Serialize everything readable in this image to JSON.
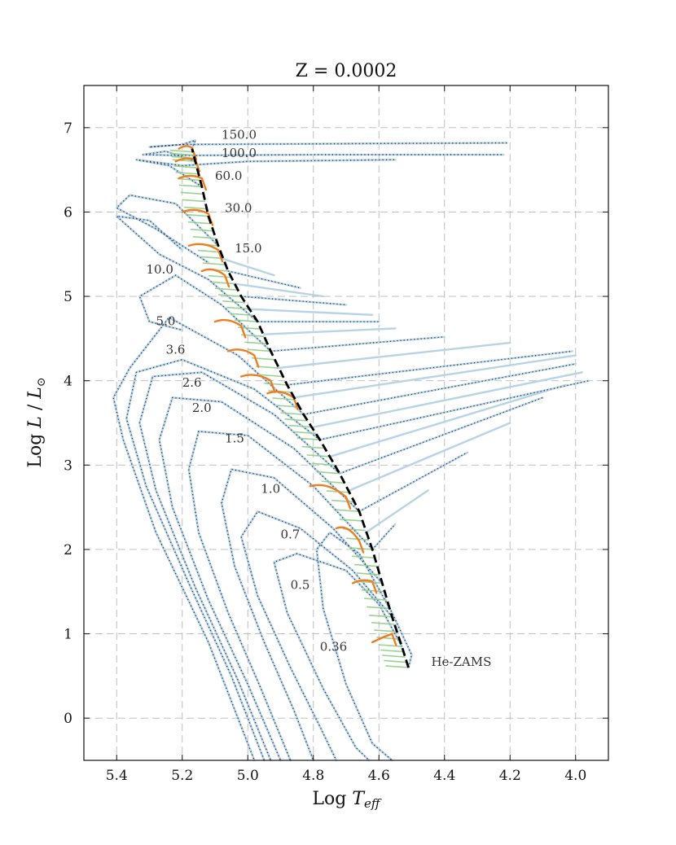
{
  "chart_data": {
    "type": "line",
    "title": "Z = 0.0002",
    "xlabel": "Log T_eff",
    "xlabel_parts": [
      "Log ",
      "T",
      "eff"
    ],
    "ylabel": "Log L/L_sun",
    "ylabel_parts": [
      "Log ",
      "L",
      " / ",
      "L",
      "⊙"
    ],
    "xlim": [
      5.5,
      3.9
    ],
    "ylim": [
      -0.5,
      7.5
    ],
    "x_ticks": [
      5.4,
      5.2,
      5.0,
      4.8,
      4.6,
      4.4,
      4.2,
      4.0
    ],
    "x_tick_labels": [
      "5.4",
      "5.2",
      "5.0",
      "4.8",
      "4.6",
      "4.4",
      "4.2",
      "4.0"
    ],
    "y_ticks": [
      0,
      1,
      2,
      3,
      4,
      5,
      6,
      7
    ],
    "y_tick_labels": [
      "0",
      "1",
      "2",
      "3",
      "4",
      "5",
      "6",
      "7"
    ],
    "grid": true,
    "colors": {
      "tracks": "#b7d3e6",
      "dotted": "#1f3550",
      "green": "#8fcf86",
      "orange": "#ef7d22",
      "zams": "#000000"
    },
    "he_zams_label": "He-ZAMS",
    "he_zams": [
      [
        4.51,
        0.6
      ],
      [
        4.53,
        0.85
      ],
      [
        4.56,
        1.2
      ],
      [
        4.59,
        1.6
      ],
      [
        4.62,
        2.0
      ],
      [
        4.66,
        2.45
      ],
      [
        4.72,
        2.9
      ],
      [
        4.78,
        3.3
      ],
      [
        4.83,
        3.6
      ],
      [
        4.88,
        3.95
      ],
      [
        4.93,
        4.35
      ],
      [
        4.97,
        4.7
      ],
      [
        5.02,
        5.0
      ],
      [
        5.06,
        5.3
      ],
      [
        5.09,
        5.6
      ],
      [
        5.12,
        5.95
      ],
      [
        5.14,
        6.3
      ],
      [
        5.16,
        6.6
      ],
      [
        5.17,
        6.75
      ]
    ],
    "mass_labels": [
      {
        "text": "150.0",
        "x": 5.08,
        "y": 6.87
      },
      {
        "text": "100.0",
        "x": 5.08,
        "y": 6.65
      },
      {
        "text": "60.0",
        "x": 5.1,
        "y": 6.38
      },
      {
        "text": "30.0",
        "x": 5.07,
        "y": 6.0
      },
      {
        "text": "15.0",
        "x": 5.04,
        "y": 5.52
      },
      {
        "text": "10.0",
        "x": 5.31,
        "y": 5.27
      },
      {
        "text": "5.0",
        "x": 5.28,
        "y": 4.66
      },
      {
        "text": "3.6",
        "x": 5.25,
        "y": 4.32
      },
      {
        "text": "2.6",
        "x": 5.2,
        "y": 3.93
      },
      {
        "text": "2.0",
        "x": 5.17,
        "y": 3.63
      },
      {
        "text": "1.5",
        "x": 5.07,
        "y": 3.27
      },
      {
        "text": "1.0",
        "x": 4.96,
        "y": 2.67
      },
      {
        "text": "0.7",
        "x": 4.9,
        "y": 2.13
      },
      {
        "text": "0.5",
        "x": 4.87,
        "y": 1.53
      },
      {
        "text": "0.36",
        "x": 4.78,
        "y": 0.8
      }
    ],
    "series": [
      {
        "name": "0.36",
        "points": [
          [
            4.51,
            0.6
          ],
          [
            4.5,
            0.75
          ],
          [
            4.56,
            1.25
          ],
          [
            4.66,
            1.95
          ],
          [
            4.75,
            2.2
          ],
          [
            4.79,
            2.0
          ],
          [
            4.77,
            1.3
          ],
          [
            4.7,
            0.4
          ],
          [
            4.62,
            -0.3
          ],
          [
            4.56,
            -0.5
          ]
        ]
      },
      {
        "name": "0.5",
        "points": [
          [
            4.53,
            0.85
          ],
          [
            4.6,
            1.35
          ],
          [
            4.7,
            1.75
          ],
          [
            4.85,
            1.95
          ],
          [
            4.92,
            1.85
          ],
          [
            4.88,
            1.25
          ],
          [
            4.77,
            0.35
          ],
          [
            4.67,
            -0.35
          ],
          [
            4.63,
            -0.5
          ]
        ]
      },
      {
        "name": "0.7",
        "points": [
          [
            4.56,
            1.2
          ],
          [
            4.68,
            1.75
          ],
          [
            4.84,
            2.25
          ],
          [
            4.97,
            2.45
          ],
          [
            5.02,
            2.15
          ],
          [
            4.97,
            1.45
          ],
          [
            4.87,
            0.6
          ],
          [
            4.78,
            -0.1
          ],
          [
            4.73,
            -0.5
          ]
        ]
      },
      {
        "name": "1.0",
        "points": [
          [
            4.59,
            1.6
          ],
          [
            4.74,
            2.25
          ],
          [
            4.92,
            2.85
          ],
          [
            5.05,
            2.95
          ],
          [
            5.08,
            2.55
          ],
          [
            5.04,
            1.8
          ],
          [
            4.95,
            0.9
          ],
          [
            4.86,
            0.1
          ],
          [
            4.8,
            -0.5
          ]
        ]
      },
      {
        "name": "1.5",
        "points": [
          [
            4.62,
            2.0
          ],
          [
            4.8,
            2.75
          ],
          [
            5.0,
            3.35
          ],
          [
            5.15,
            3.4
          ],
          [
            5.18,
            2.95
          ],
          [
            5.15,
            2.2
          ],
          [
            5.06,
            1.25
          ],
          [
            4.96,
            0.35
          ],
          [
            4.87,
            -0.5
          ]
        ]
      },
      {
        "name": "2.0",
        "points": [
          [
            4.66,
            2.45
          ],
          [
            4.86,
            3.2
          ],
          [
            5.08,
            3.75
          ],
          [
            5.23,
            3.8
          ],
          [
            5.27,
            3.3
          ],
          [
            5.23,
            2.5
          ],
          [
            5.12,
            1.4
          ],
          [
            5.0,
            0.4
          ],
          [
            4.9,
            -0.5
          ]
        ]
      },
      {
        "name": "2.6",
        "points": [
          [
            4.72,
            2.9
          ],
          [
            4.92,
            3.6
          ],
          [
            5.14,
            4.1
          ],
          [
            5.29,
            4.05
          ],
          [
            5.33,
            3.5
          ],
          [
            5.28,
            2.7
          ],
          [
            5.16,
            1.55
          ],
          [
            5.03,
            0.45
          ],
          [
            4.93,
            -0.5
          ]
        ]
      },
      {
        "name": "3.6",
        "points": [
          [
            4.78,
            3.3
          ],
          [
            4.98,
            3.9
          ],
          [
            5.2,
            4.25
          ],
          [
            5.34,
            4.1
          ],
          [
            5.37,
            3.55
          ],
          [
            5.31,
            2.75
          ],
          [
            5.18,
            1.6
          ],
          [
            5.05,
            0.5
          ],
          [
            4.95,
            -0.5
          ]
        ]
      },
      {
        "name": "5.0",
        "points": [
          [
            4.83,
            3.6
          ],
          [
            5.03,
            4.3
          ],
          [
            5.24,
            4.75
          ],
          [
            5.36,
            4.15
          ],
          [
            5.41,
            3.8
          ],
          [
            5.38,
            3.3
          ],
          [
            5.28,
            2.2
          ],
          [
            5.12,
            0.9
          ],
          [
            4.98,
            -0.5
          ]
        ]
      },
      {
        "name": "10.0",
        "points": [
          [
            4.93,
            4.35
          ],
          [
            5.08,
            4.9
          ],
          [
            5.22,
            5.25
          ],
          [
            5.33,
            5.0
          ],
          [
            5.3,
            4.7
          ],
          [
            5.2,
            4.6
          ]
        ]
      },
      {
        "name": "15.0",
        "points": [
          [
            4.97,
            4.7
          ],
          [
            5.12,
            5.2
          ],
          [
            5.27,
            5.5
          ],
          [
            5.4,
            5.95
          ],
          [
            5.3,
            5.9
          ],
          [
            5.2,
            5.55
          ]
        ]
      },
      {
        "name": "30.0",
        "points": [
          [
            5.09,
            5.6
          ],
          [
            5.22,
            6.1
          ],
          [
            5.36,
            6.2
          ],
          [
            5.4,
            6.05
          ],
          [
            5.28,
            5.8
          ],
          [
            5.12,
            5.4
          ]
        ]
      },
      {
        "name": "60.0",
        "points": [
          [
            5.14,
            6.3
          ],
          [
            5.24,
            6.55
          ],
          [
            5.34,
            6.62
          ],
          [
            5.2,
            6.55
          ],
          [
            5.0,
            6.6
          ],
          [
            4.55,
            6.62
          ]
        ]
      },
      {
        "name": "100.0",
        "points": [
          [
            5.16,
            6.6
          ],
          [
            5.25,
            6.72
          ],
          [
            5.32,
            6.68
          ],
          [
            5.2,
            6.67
          ],
          [
            4.8,
            6.68
          ],
          [
            4.22,
            6.68
          ]
        ]
      },
      {
        "name": "150.0",
        "points": [
          [
            5.17,
            6.75
          ],
          [
            5.16,
            6.85
          ],
          [
            5.2,
            6.8
          ],
          [
            5.3,
            6.77
          ],
          [
            5.2,
            6.8
          ],
          [
            4.21,
            6.82
          ]
        ]
      }
    ],
    "fan_tracks": [
      {
        "x0": 4.62,
        "y0": 2.0,
        "x1": 4.55,
        "y1": 2.3
      },
      {
        "x0": 4.64,
        "y0": 2.2,
        "x1": 4.45,
        "y1": 2.7
      },
      {
        "x0": 4.66,
        "y0": 2.45,
        "x1": 4.33,
        "y1": 3.15
      },
      {
        "x0": 4.69,
        "y0": 2.7,
        "x1": 4.2,
        "y1": 3.5
      },
      {
        "x0": 4.72,
        "y0": 2.9,
        "x1": 4.1,
        "y1": 3.8
      },
      {
        "x0": 4.75,
        "y0": 3.1,
        "x1": 4.03,
        "y1": 3.95
      },
      {
        "x0": 4.78,
        "y0": 3.3,
        "x1": 3.96,
        "y1": 4.0
      },
      {
        "x0": 4.8,
        "y0": 3.45,
        "x1": 3.98,
        "y1": 4.1
      },
      {
        "x0": 4.83,
        "y0": 3.6,
        "x1": 4.0,
        "y1": 4.2
      },
      {
        "x0": 4.86,
        "y0": 3.8,
        "x1": 4.0,
        "y1": 4.3
      },
      {
        "x0": 4.88,
        "y0": 3.95,
        "x1": 4.01,
        "y1": 4.35
      },
      {
        "x0": 4.91,
        "y0": 4.15,
        "x1": 4.2,
        "y1": 4.45
      },
      {
        "x0": 4.93,
        "y0": 4.35,
        "x1": 4.4,
        "y1": 4.52
      },
      {
        "x0": 4.95,
        "y0": 4.55,
        "x1": 4.55,
        "y1": 4.62
      },
      {
        "x0": 4.97,
        "y0": 4.7,
        "x1": 4.6,
        "y1": 4.7
      },
      {
        "x0": 5.0,
        "y0": 4.85,
        "x1": 4.62,
        "y1": 4.78
      },
      {
        "x0": 5.02,
        "y0": 5.0,
        "x1": 4.7,
        "y1": 4.9
      },
      {
        "x0": 5.04,
        "y0": 5.15,
        "x1": 4.77,
        "y1": 5.0
      },
      {
        "x0": 5.06,
        "y0": 5.3,
        "x1": 4.84,
        "y1": 5.1
      },
      {
        "x0": 5.08,
        "y0": 5.45,
        "x1": 4.92,
        "y1": 5.25
      }
    ],
    "orange_segments": [
      {
        "x0": 4.62,
        "y0": 0.9,
        "x1": 4.56,
        "y1": 1.0
      },
      {
        "x0": 4.68,
        "y0": 1.6,
        "x1": 4.62,
        "y1": 1.62
      },
      {
        "x0": 4.73,
        "y0": 2.25,
        "x1": 4.66,
        "y1": 2.1
      },
      {
        "x0": 4.81,
        "y0": 2.75,
        "x1": 4.7,
        "y1": 2.62
      },
      {
        "x0": 4.94,
        "y0": 3.85,
        "x1": 4.86,
        "y1": 3.8
      },
      {
        "x0": 5.02,
        "y0": 4.05,
        "x1": 4.93,
        "y1": 4.0
      },
      {
        "x0": 5.06,
        "y0": 4.35,
        "x1": 4.98,
        "y1": 4.3
      },
      {
        "x0": 5.1,
        "y0": 4.7,
        "x1": 5.02,
        "y1": 4.65
      },
      {
        "x0": 5.14,
        "y0": 5.3,
        "x1": 5.07,
        "y1": 5.25
      },
      {
        "x0": 5.18,
        "y0": 5.6,
        "x1": 5.09,
        "y1": 5.55
      },
      {
        "x0": 5.2,
        "y0": 6.0,
        "x1": 5.12,
        "y1": 5.98
      },
      {
        "x0": 5.21,
        "y0": 6.4,
        "x1": 5.14,
        "y1": 6.4
      },
      {
        "x0": 5.22,
        "y0": 6.6,
        "x1": 5.16,
        "y1": 6.62
      },
      {
        "x0": 5.21,
        "y0": 6.75,
        "x1": 5.17,
        "y1": 6.76
      }
    ]
  }
}
